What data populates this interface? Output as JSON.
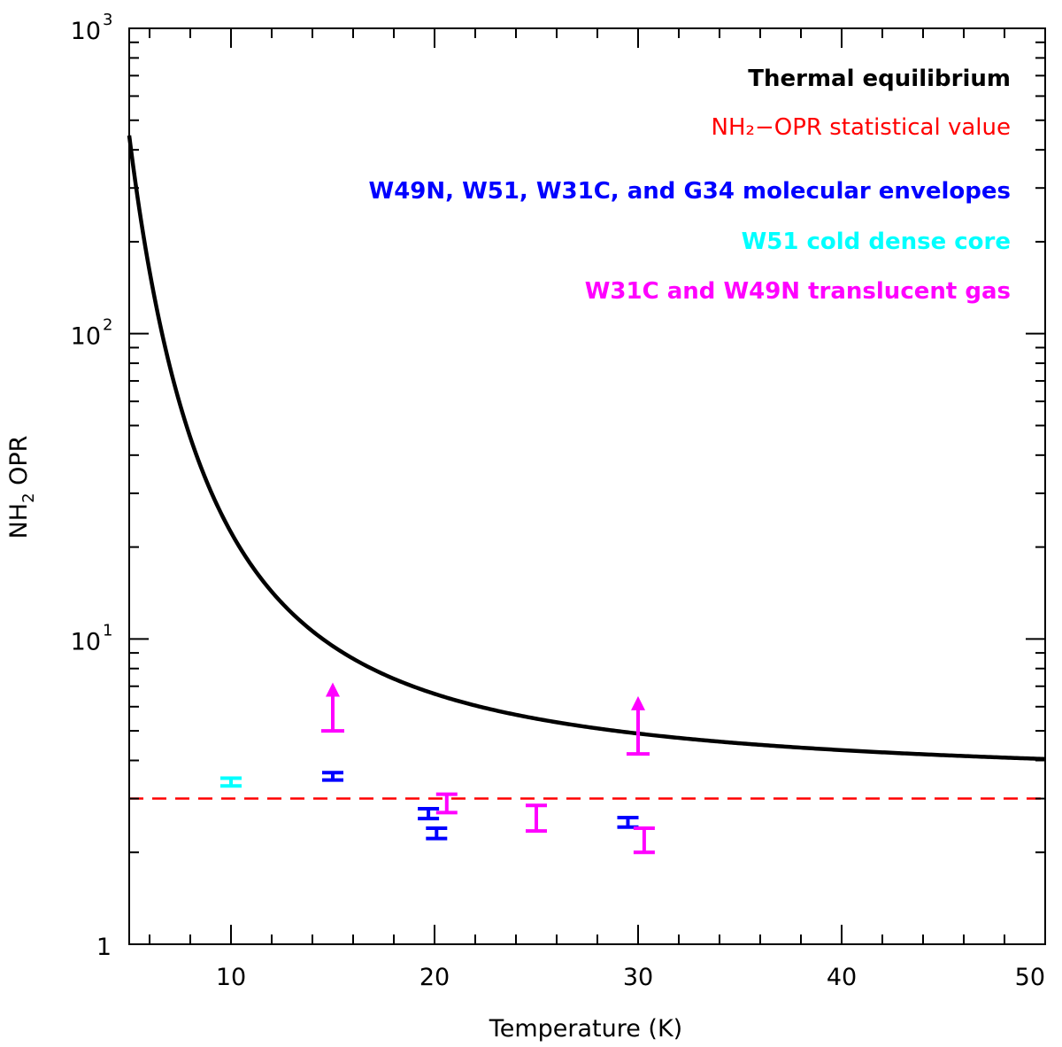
{
  "chart_data": {
    "type": "scatter",
    "title": "",
    "xlabel": "Temperature (K)",
    "ylabel": {
      "prefix": "NH",
      "subscript": "2",
      "suffix": " OPR"
    },
    "xlim": [
      5,
      50
    ],
    "ylim": [
      1,
      1000
    ],
    "yscale": "log",
    "x_ticks": [
      {
        "value": 10,
        "label": "10"
      },
      {
        "value": 20,
        "label": "20"
      },
      {
        "value": 30,
        "label": "30"
      },
      {
        "value": 40,
        "label": "40"
      },
      {
        "value": 50,
        "label": "50"
      }
    ],
    "y_ticks": [
      {
        "value": 1,
        "base": "1",
        "exp": ""
      },
      {
        "value": 10,
        "base": "10",
        "exp": "1"
      },
      {
        "value": 100,
        "base": "10",
        "exp": "2"
      },
      {
        "value": 1000,
        "base": "10",
        "exp": "3"
      }
    ],
    "legend": [
      {
        "text": "Thermal equilibrium",
        "color": "#000000",
        "bold": true
      },
      {
        "text": "NH₂−OPR statistical value",
        "color": "#ff0000",
        "bold": false
      },
      {
        "text": "W49N, W51, W31C, and G34 molecular envelopes",
        "color": "#0000ff",
        "bold": true
      },
      {
        "text": "W51 cold dense core",
        "color": "#00ffff",
        "bold": true
      },
      {
        "text": "W31C and W49N translucent gas",
        "color": "#ff00ff",
        "bold": true
      }
    ],
    "series": [
      {
        "name": "Thermal equilibrium",
        "kind": "curve",
        "color": "#000000"
      },
      {
        "name": "NH₂−OPR statistical value",
        "kind": "hline",
        "y": 3.0,
        "color": "#ff0000"
      },
      {
        "name": "W49N, W51, W31C, and G34 molecular envelopes",
        "kind": "errorbar",
        "color": "#0000ff",
        "points": [
          {
            "x": 15,
            "lo": 3.45,
            "hi": 3.65
          },
          {
            "x": 19.7,
            "lo": 2.58,
            "hi": 2.78
          },
          {
            "x": 20.1,
            "lo": 2.22,
            "hi": 2.4
          },
          {
            "x": 29.5,
            "lo": 2.42,
            "hi": 2.6
          }
        ]
      },
      {
        "name": "W51 cold dense core",
        "kind": "errorbar",
        "color": "#00ffff",
        "points": [
          {
            "x": 10,
            "lo": 3.3,
            "hi": 3.5
          }
        ]
      },
      {
        "name": "W31C and W49N translucent gas",
        "kind": "errorbar",
        "color": "#ff00ff",
        "points": [
          {
            "x": 20.6,
            "lo": 2.7,
            "hi": 3.1
          },
          {
            "x": 25,
            "lo": 2.35,
            "hi": 2.85
          },
          {
            "x": 30.3,
            "lo": 2.0,
            "hi": 2.4
          }
        ]
      },
      {
        "name": "W31C and W49N translucent gas (lower limits)",
        "kind": "lowerlimit",
        "color": "#ff00ff",
        "points": [
          {
            "x": 15,
            "y": 5.0,
            "arrow_to": 7.2
          },
          {
            "x": 30,
            "y": 4.2,
            "arrow_to": 6.5
          }
        ]
      }
    ]
  }
}
